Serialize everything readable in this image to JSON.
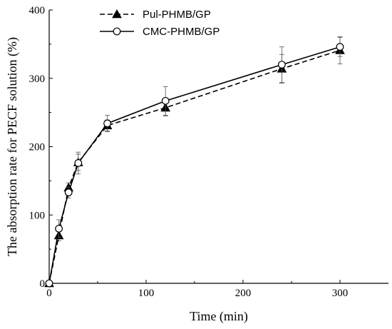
{
  "chart_data": {
    "type": "line",
    "title": "",
    "xlabel": "Time (min)",
    "ylabel": "The absorption rate for PECF solution (%)",
    "xlim": [
      0,
      350
    ],
    "ylim": [
      0,
      400
    ],
    "xticks": [
      0,
      100,
      200,
      300
    ],
    "yticks": [
      0,
      100,
      200,
      300,
      400
    ],
    "grid": false,
    "legend_position": "top-left",
    "series": [
      {
        "name": "Pul-PHMB/GP",
        "color": "#000000",
        "line_style": "dashed",
        "marker": "filled-triangle",
        "x": [
          0,
          10,
          20,
          30,
          60,
          120,
          240,
          300
        ],
        "y": [
          0,
          70,
          140,
          177,
          231,
          257,
          314,
          341
        ],
        "err": [
          0,
          8,
          7,
          12,
          8,
          12,
          21,
          20
        ]
      },
      {
        "name": "CMC-PHMB/GP",
        "color": "#000000",
        "line_style": "solid",
        "marker": "open-circle",
        "x": [
          0,
          10,
          20,
          30,
          60,
          120,
          240,
          300
        ],
        "y": [
          0,
          80,
          133,
          176,
          234,
          267,
          320,
          346
        ],
        "err": [
          0,
          13,
          8,
          16,
          12,
          21,
          26,
          14
        ]
      }
    ]
  }
}
